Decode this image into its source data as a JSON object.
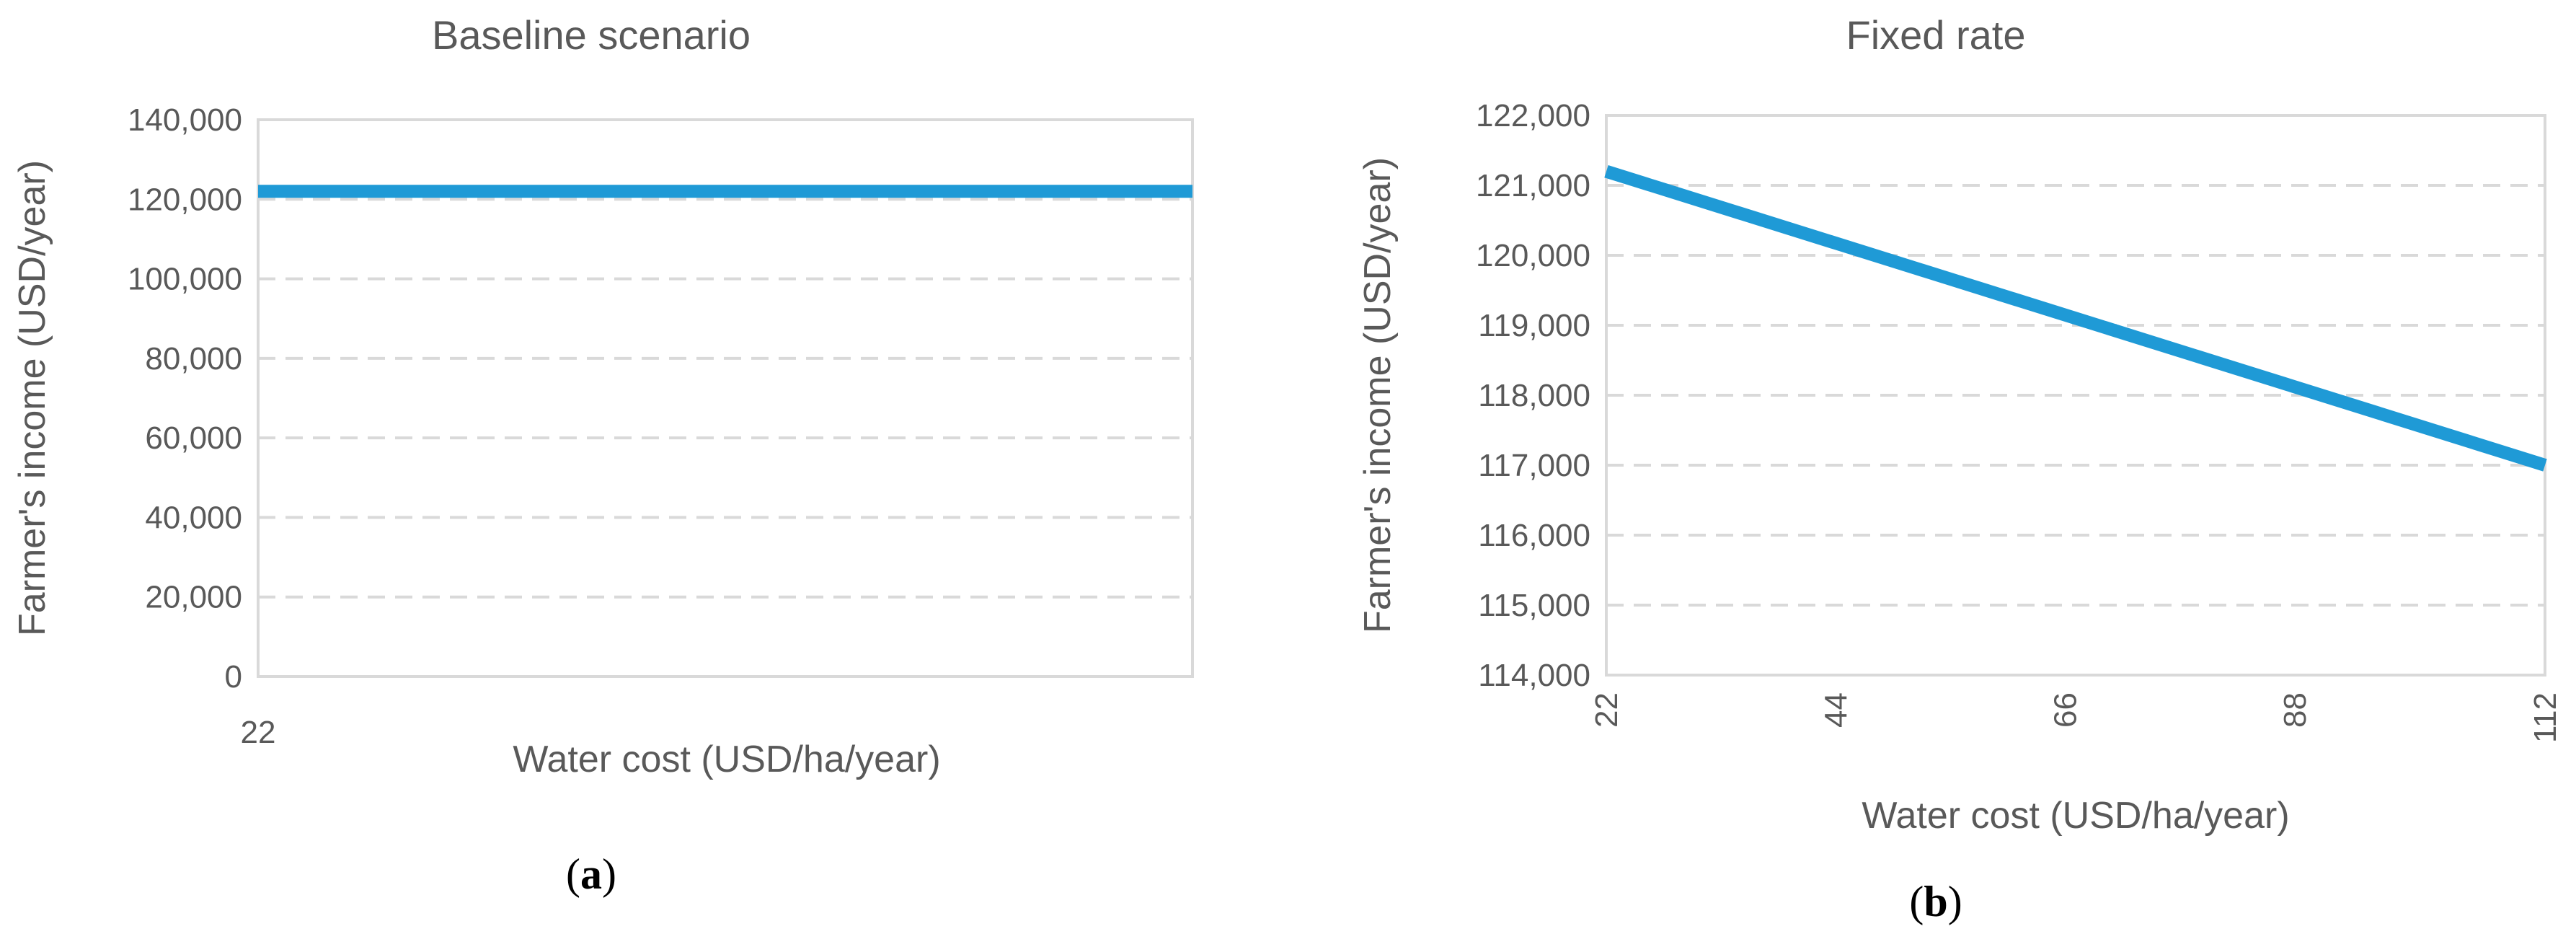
{
  "chart_data": [
    {
      "type": "line",
      "title": "Baseline scenario",
      "xlabel": "Water cost (USD/ha/year)",
      "ylabel": "Farmer's income (USD/year)",
      "ylim": [
        0,
        140000
      ],
      "y_ticks": [
        "0",
        "20,000",
        "40,000",
        "60,000",
        "80,000",
        "100,000",
        "120,000",
        "140,000"
      ],
      "x_ticks": [
        "22"
      ],
      "grid": true,
      "series": [
        {
          "x": [
            22,
            112
          ],
          "values": [
            122000,
            122000
          ],
          "color": "#1f9ad6"
        }
      ],
      "panel_label": "a",
      "panel_label_open": "(",
      "panel_label_close": ")"
    },
    {
      "type": "line",
      "title": "Fixed rate",
      "xlabel": "Water cost (USD/ha/year)",
      "ylabel": "Farmer's income (USD/year)",
      "ylim": [
        114000,
        122000
      ],
      "y_ticks": [
        "114,000",
        "115,000",
        "116,000",
        "117,000",
        "118,000",
        "119,000",
        "120,000",
        "121,000",
        "122,000"
      ],
      "x_ticks": [
        "22",
        "44",
        "66",
        "88",
        "112"
      ],
      "grid": true,
      "series": [
        {
          "x": [
            22,
            112
          ],
          "values": [
            121200,
            117000
          ],
          "color": "#1f9ad6"
        }
      ],
      "panel_label": "b",
      "panel_label_open": "(",
      "panel_label_close": ")"
    }
  ]
}
